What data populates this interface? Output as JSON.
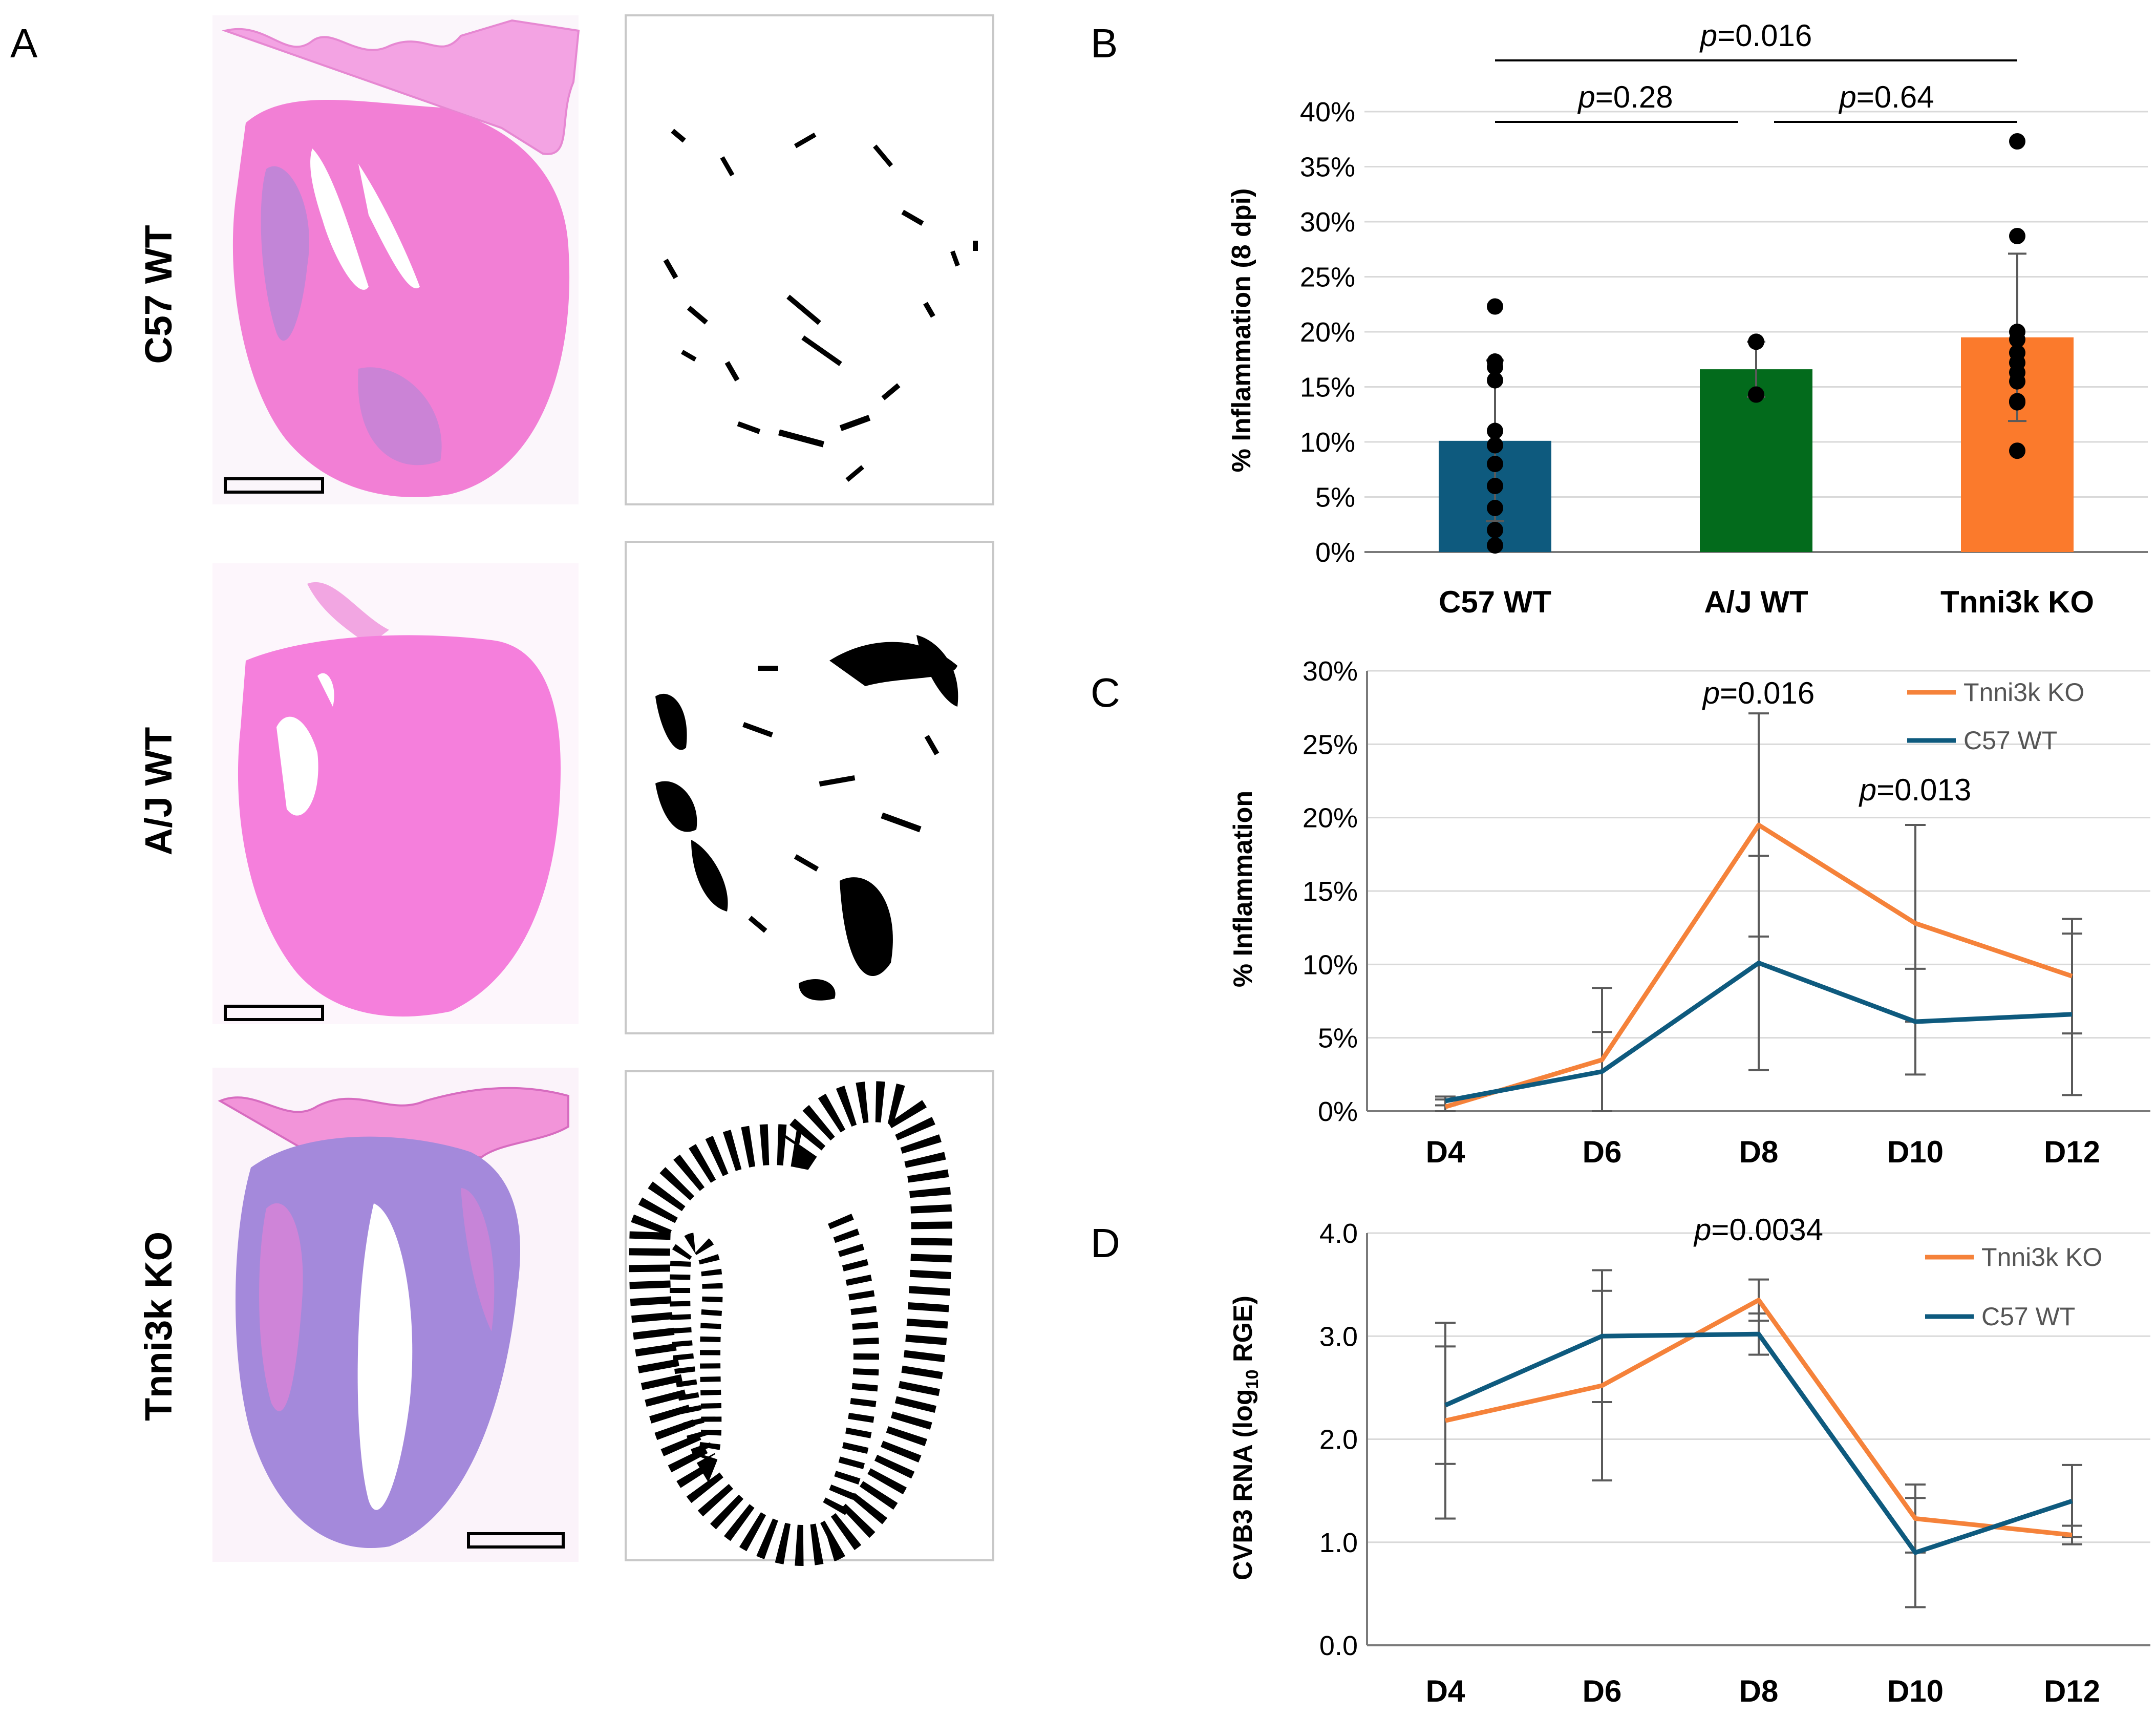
{
  "panels": {
    "a": {
      "label": "A",
      "rows": [
        {
          "label": "C57 WT"
        },
        {
          "label": "A/J WT"
        },
        {
          "label": "Tnni3k KO"
        }
      ],
      "colors": {
        "tissue_pink": "#f07bd4",
        "tissue_blue": "#8a86d8",
        "mask_ink": "#000000"
      }
    },
    "b": {
      "label": "B"
    },
    "c": {
      "label": "C"
    },
    "d": {
      "label": "D"
    }
  },
  "chart_data": [
    {
      "panel": "B",
      "type": "bar",
      "categories": [
        "C57 WT",
        "A/J WT",
        "Tnni3k KO"
      ],
      "values": [
        10.1,
        16.6,
        19.5
      ],
      "errors": [
        7.3,
        2.5,
        7.6
      ],
      "colors": [
        "#0e5a7e",
        "#036b1c",
        "#fb7a2c"
      ],
      "points": [
        [
          22.3,
          17.3,
          16.8,
          15.6,
          11.0,
          9.7,
          8.0,
          6.0,
          4.0,
          2.0,
          0.6
        ],
        [
          19.1,
          14.3
        ],
        [
          37.3,
          28.7,
          20.0,
          19.3,
          18.1,
          17.2,
          16.3,
          15.5,
          13.7,
          13.6,
          9.2
        ]
      ],
      "ylabel": "% Inflammation (8 dpi)",
      "ylim": [
        0,
        40
      ],
      "yticks": [
        0,
        5,
        10,
        15,
        20,
        25,
        30,
        35,
        40
      ],
      "ytick_labels": [
        "0%",
        "5%",
        "10%",
        "15%",
        "20%",
        "25%",
        "30%",
        "35%",
        "40%"
      ],
      "comparisons": [
        {
          "from": 0,
          "to": 2,
          "label": "=0.016"
        },
        {
          "from": 0,
          "to": 1,
          "label": "=0.28"
        },
        {
          "from": 1,
          "to": 2,
          "label": "=0.64"
        }
      ],
      "p_symbol": "p"
    },
    {
      "panel": "C",
      "type": "line",
      "x": [
        "D4",
        "D6",
        "D8",
        "D10",
        "D12"
      ],
      "series": [
        {
          "name": "Tnni3k KO",
          "color": "#f5823a",
          "values": [
            0.3,
            3.5,
            19.5,
            12.8,
            9.2
          ],
          "errors": [
            0.5,
            4.9,
            7.6,
            6.7,
            3.9
          ]
        },
        {
          "name": "C57 WT",
          "color": "#0e5a7e",
          "values": [
            0.7,
            2.7,
            10.1,
            6.1,
            6.6
          ],
          "errors": [
            0.3,
            2.7,
            7.3,
            3.6,
            5.5
          ]
        }
      ],
      "ylabel": "% Inflammation",
      "ylim": [
        0,
        30
      ],
      "yticks": [
        0,
        5,
        10,
        15,
        20,
        25,
        30
      ],
      "ytick_labels": [
        "0%",
        "5%",
        "10%",
        "15%",
        "20%",
        "25%",
        "30%"
      ],
      "annotations": [
        {
          "x": "D8",
          "value": 27,
          "label": "=0.016"
        },
        {
          "x": "D10",
          "value": 20.4,
          "label": "=0.013"
        }
      ],
      "p_symbol": "p"
    },
    {
      "panel": "D",
      "type": "line",
      "x": [
        "D4",
        "D6",
        "D8",
        "D10",
        "D12"
      ],
      "series": [
        {
          "name": "Tnni3k KO",
          "color": "#f5823a",
          "values": [
            2.18,
            2.52,
            3.35,
            1.23,
            1.07
          ],
          "errors": [
            0.95,
            0.92,
            0.2,
            0.33,
            0.09
          ]
        },
        {
          "name": "C57 WT",
          "color": "#0e5a7e",
          "values": [
            2.33,
            3.0,
            3.02,
            0.9,
            1.4
          ],
          "errors": [
            0.57,
            0.64,
            0.2,
            0.53,
            0.35
          ]
        }
      ],
      "ylabel": "CVB3 RNA (log",
      "ylabel_sub": "10",
      "ylabel_tail": " RGE)",
      "ylim": [
        0,
        4
      ],
      "yticks": [
        0,
        1,
        2,
        3,
        4
      ],
      "ytick_labels": [
        "0.0",
        "1.0",
        "2.0",
        "3.0",
        "4.0"
      ],
      "annotations": [
        {
          "x": "D8",
          "value": 3.82,
          "label": "=0.0034"
        }
      ],
      "p_symbol": "p"
    }
  ]
}
